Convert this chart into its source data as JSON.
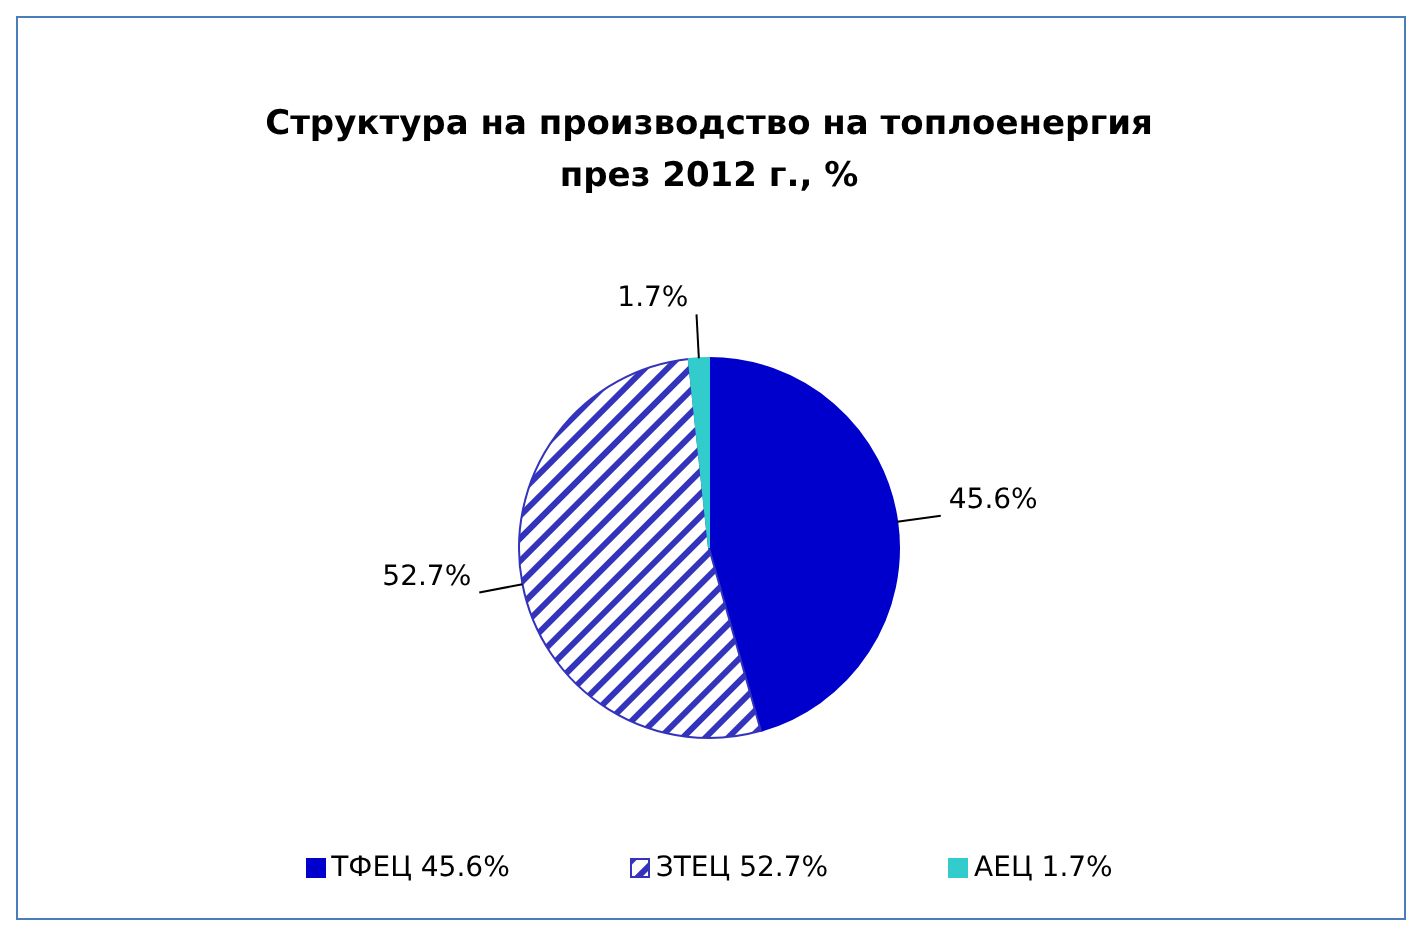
{
  "chart_data": {
    "type": "pie",
    "title": "Структура на производство на топлоенергия\nпрез 2012 г., %",
    "categories": [
      "ТФЕЦ 45.6%",
      "ЗТЕЦ 52.7%",
      "АЕЦ 1.7%"
    ],
    "values": [
      45.6,
      52.7,
      1.7
    ],
    "colors": [
      "#0000cc",
      "#3333bb",
      "#33cccc"
    ],
    "value_labels": [
      "45.6%",
      "52.7%",
      "1.7%"
    ],
    "legend": "bottom"
  }
}
